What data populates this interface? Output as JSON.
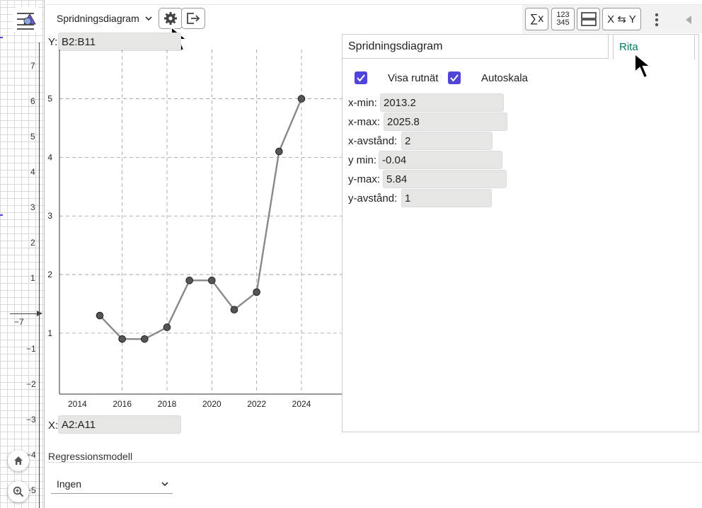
{
  "toolbar": {
    "chart_type": "Spridningsdiagram",
    "right_buttons": [
      "∑x",
      "123 345",
      "X ⇆ Y"
    ]
  },
  "inputs": {
    "y_label": "Y:",
    "y_value": "B2:B11",
    "x_label": "X:",
    "x_value": "A2:A11"
  },
  "strip": {
    "y_ticks": [
      "7",
      "6",
      "5",
      "4",
      "3",
      "2",
      "1",
      "−1",
      "−2",
      "−3",
      "−4",
      "−5"
    ],
    "x_tick": "−7"
  },
  "settings": {
    "title": "Spridningsdiagram",
    "tab": "Rita",
    "show_grid_label": "Visa rutnät",
    "show_grid": true,
    "autoscale_label": "Autoskala",
    "autoscale": true,
    "fields": [
      {
        "label": "x-min:",
        "value": "2013.2"
      },
      {
        "label": "x-max:",
        "value": "2025.8"
      },
      {
        "label": "x-avstånd:",
        "value": "2"
      },
      {
        "label": "y min:",
        "value": "-0.04"
      },
      {
        "label": "y-max:",
        "value": "5.84"
      },
      {
        "label": "y-avstånd:",
        "value": "1"
      }
    ]
  },
  "regression": {
    "label": "Regressionsmodell",
    "selected": "Ingen"
  },
  "chart_data": {
    "type": "line",
    "x": [
      2015,
      2016,
      2017,
      2018,
      2019,
      2020,
      2021,
      2022,
      2023,
      2024
    ],
    "y": [
      1.3,
      0.9,
      0.9,
      1.1,
      1.9,
      1.9,
      1.4,
      1.7,
      4.1,
      5.0
    ],
    "xlim": [
      2013.2,
      2025.8
    ],
    "ylim": [
      -0.04,
      5.84
    ],
    "x_ticks": [
      "2014",
      "2016",
      "2018",
      "2020",
      "2022",
      "2024"
    ],
    "y_ticks": [
      "1",
      "2",
      "3",
      "4",
      "5"
    ],
    "grid": true,
    "colors": {
      "line": "#888888",
      "point": "#555555"
    }
  }
}
